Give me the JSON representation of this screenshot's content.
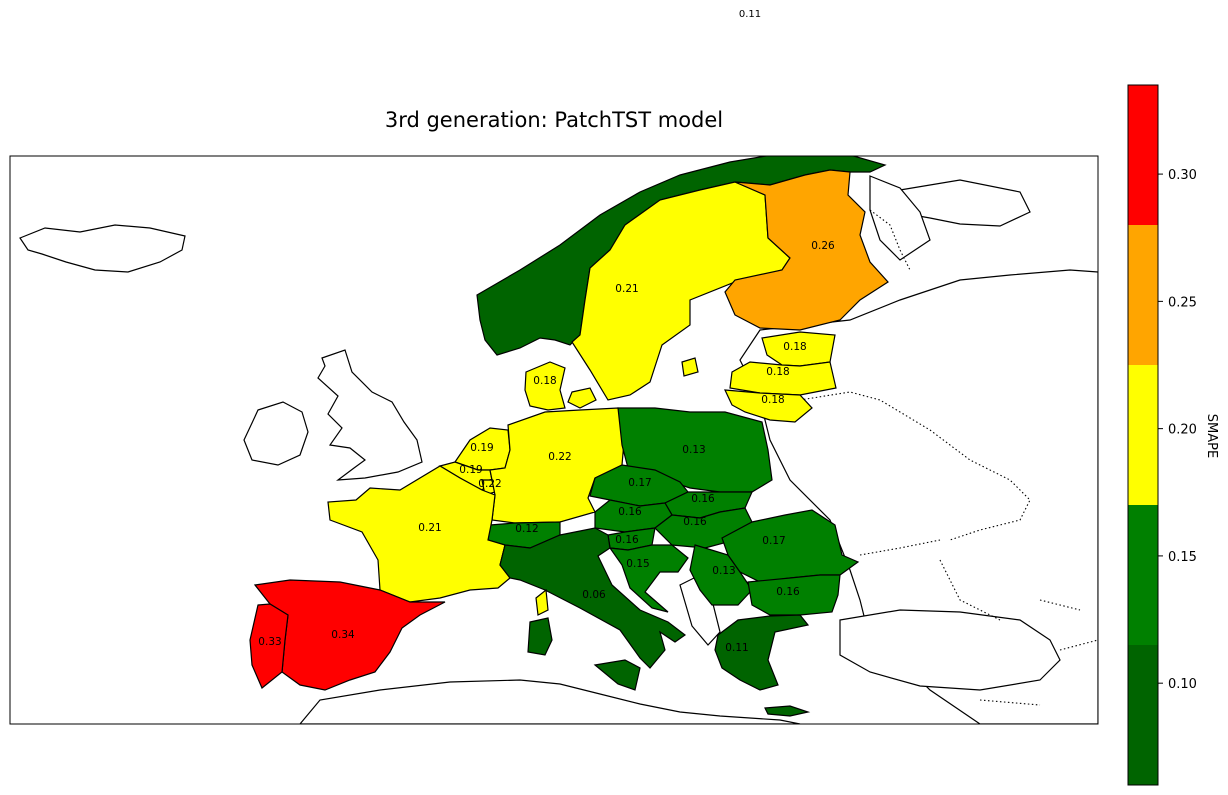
{
  "title": "3rd generation: PatchTST model",
  "stray_label": "0.11",
  "colorbar": {
    "label": "SMAPE",
    "ticks": [
      "0.10",
      "0.15",
      "0.20",
      "0.25",
      "0.30"
    ],
    "range": [
      0.06,
      0.335
    ],
    "bins": [
      {
        "from": 0.06,
        "to": 0.115,
        "color": "#006400"
      },
      {
        "from": 0.115,
        "to": 0.17,
        "color": "#008000"
      },
      {
        "from": 0.17,
        "to": 0.225,
        "color": "#ffff00"
      },
      {
        "from": 0.225,
        "to": 0.28,
        "color": "#ffa500"
      },
      {
        "from": 0.28,
        "to": 0.335,
        "color": "#ff0000"
      }
    ]
  },
  "countries": [
    {
      "name": "Norway",
      "value": "",
      "color": "#006400"
    },
    {
      "name": "Sweden",
      "value": "0.21",
      "color": "#ffff00"
    },
    {
      "name": "Finland",
      "value": "0.26",
      "color": "#ffa500"
    },
    {
      "name": "Estonia",
      "value": "0.18",
      "color": "#ffff00"
    },
    {
      "name": "Latvia",
      "value": "0.18",
      "color": "#ffff00"
    },
    {
      "name": "Lithuania",
      "value": "0.18",
      "color": "#ffff00"
    },
    {
      "name": "Denmark",
      "value": "0.18",
      "color": "#ffff00"
    },
    {
      "name": "Netherlands",
      "value": "0.19",
      "color": "#ffff00"
    },
    {
      "name": "Belgium",
      "value": "0.19",
      "color": "#ffff00"
    },
    {
      "name": "Luxembourg",
      "value": "0.22",
      "color": "#ffff00"
    },
    {
      "name": "Germany",
      "value": "0.22",
      "color": "#ffff00"
    },
    {
      "name": "Poland",
      "value": "0.13",
      "color": "#008000"
    },
    {
      "name": "Czechia",
      "value": "0.17",
      "color": "#008000"
    },
    {
      "name": "Slovakia",
      "value": "0.16",
      "color": "#008000"
    },
    {
      "name": "Austria",
      "value": "0.16",
      "color": "#008000"
    },
    {
      "name": "Hungary",
      "value": "0.16",
      "color": "#008000"
    },
    {
      "name": "Switzerland",
      "value": "0.12",
      "color": "#008000"
    },
    {
      "name": "Slovenia",
      "value": "0.16",
      "color": "#008000"
    },
    {
      "name": "Croatia",
      "value": "0.15",
      "color": "#008000"
    },
    {
      "name": "Serbia",
      "value": "0.13",
      "color": "#008000"
    },
    {
      "name": "Romania",
      "value": "0.17",
      "color": "#008000"
    },
    {
      "name": "Bulgaria",
      "value": "0.16",
      "color": "#008000"
    },
    {
      "name": "France",
      "value": "0.21",
      "color": "#ffff00"
    },
    {
      "name": "Italy",
      "value": "0.06",
      "color": "#006400"
    },
    {
      "name": "Greece",
      "value": "0.11",
      "color": "#006400"
    },
    {
      "name": "Spain",
      "value": "0.34",
      "color": "#ff0000"
    },
    {
      "name": "Portugal",
      "value": "0.33",
      "color": "#ff0000"
    }
  ]
}
